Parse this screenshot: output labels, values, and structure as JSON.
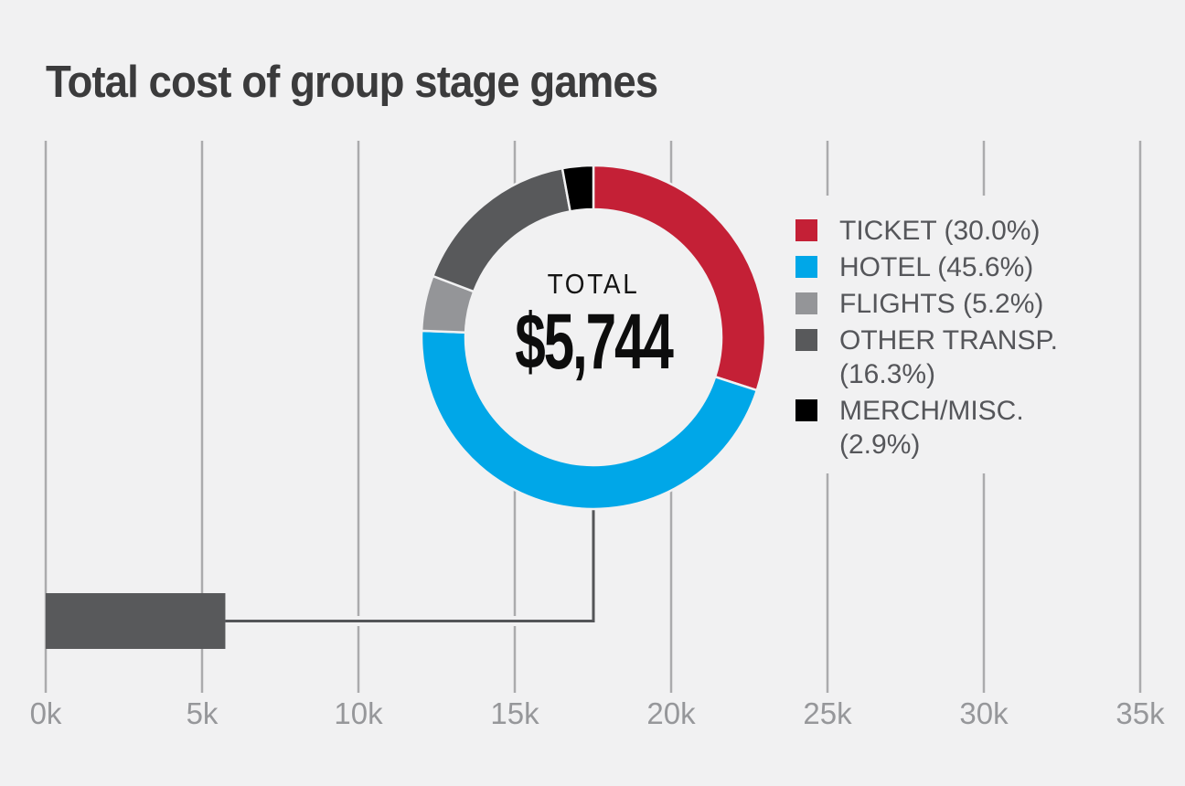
{
  "title": "Total cost of group stage games",
  "colors": {
    "background": "#f1f1f2",
    "title": "#3b3b3c",
    "grid": "#ababad",
    "axis_label": "#96979a",
    "connector": "#545558",
    "legend_text": "#55565a",
    "separator": "#f1f1f2"
  },
  "chart_data": {
    "type": "donut",
    "title": "Total cost of group stage games",
    "center": {
      "label": "TOTAL",
      "value": "$5,744"
    },
    "total_usd": 5744,
    "series": [
      {
        "name": "TICKET",
        "pct": 30.0,
        "color": "#c42036"
      },
      {
        "name": "HOTEL",
        "pct": 45.6,
        "color": "#00a7e8"
      },
      {
        "name": "FLIGHTS",
        "pct": 5.2,
        "color": "#949598"
      },
      {
        "name": "OTHER TRANSP.",
        "pct": 16.3,
        "color": "#58595b"
      },
      {
        "name": "MERCH/MISC.",
        "pct": 2.9,
        "color": "#000000"
      }
    ],
    "legend": {
      "position": "right",
      "items": [
        {
          "line1": "TICKET (30.0%)",
          "line2": ""
        },
        {
          "line1": "HOTEL (45.6%)",
          "line2": ""
        },
        {
          "line1": "FLIGHTS (5.2%)",
          "line2": ""
        },
        {
          "line1": "OTHER TRANSP.",
          "line2": "(16.3%)"
        },
        {
          "line1": "MERCH/MISC.",
          "line2": "(2.9%)"
        }
      ]
    },
    "bar": {
      "value": 5744,
      "color": "#58595b"
    },
    "axis": {
      "min": 0,
      "max": 35000,
      "grid": true,
      "tick_values": [
        0,
        5000,
        10000,
        15000,
        20000,
        25000,
        30000,
        35000
      ],
      "tick_labels": [
        "0k",
        "5k",
        "10k",
        "15k",
        "20k",
        "25k",
        "30k",
        "35k"
      ]
    }
  }
}
